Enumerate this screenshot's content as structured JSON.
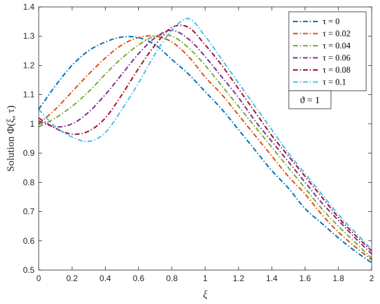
{
  "chart_data": {
    "type": "line",
    "title": "",
    "xlabel": "ξ",
    "ylabel": "Solution Φ(ξ, τ)",
    "xlim": [
      0,
      2
    ],
    "ylim": [
      0.5,
      1.4
    ],
    "xticks": [
      0,
      0.2,
      0.4,
      0.6,
      0.8,
      1,
      1.2,
      1.4,
      1.6,
      1.8,
      2
    ],
    "xtick_labels": [
      "0",
      "0.2",
      "0.4",
      "0.6",
      "0.8",
      "1",
      "1.2",
      "1.4",
      "1.6",
      "1.8",
      "2"
    ],
    "yticks": [
      0.5,
      0.6,
      0.7,
      0.8,
      0.9,
      1,
      1.1,
      1.2,
      1.3,
      1.4
    ],
    "ytick_labels": [
      "0.5",
      "0.6",
      "0.7",
      "0.8",
      "0.9",
      "1",
      "1.1",
      "1.2",
      "1.3",
      "1.4"
    ],
    "grid": false,
    "line_style": "dash-dot",
    "legend_position": "top-right",
    "annotation": "ϑ = 1",
    "x": [
      0,
      0.1,
      0.2,
      0.3,
      0.4,
      0.5,
      0.6,
      0.7,
      0.8,
      0.9,
      1.0,
      1.1,
      1.2,
      1.3,
      1.4,
      1.5,
      1.6,
      1.7,
      1.8,
      1.9,
      2.0
    ],
    "series": [
      {
        "name": "τ = 0",
        "color": "#0072BD",
        "values": [
          1.05,
          1.13,
          1.2,
          1.25,
          1.28,
          1.297,
          1.295,
          1.27,
          1.22,
          1.17,
          1.11,
          1.05,
          0.98,
          0.91,
          0.84,
          0.78,
          0.71,
          0.66,
          0.61,
          0.565,
          0.525
        ]
      },
      {
        "name": "τ = 0.02",
        "color": "#D95319",
        "values": [
          1.0,
          1.05,
          1.11,
          1.17,
          1.225,
          1.27,
          1.295,
          1.3,
          1.28,
          1.23,
          1.16,
          1.1,
          1.03,
          0.96,
          0.89,
          0.82,
          0.76,
          0.69,
          0.63,
          0.58,
          0.535
        ]
      },
      {
        "name": "τ = 0.04",
        "color": "#77AC30",
        "values": [
          0.99,
          1.02,
          1.06,
          1.11,
          1.17,
          1.225,
          1.27,
          1.3,
          1.3,
          1.26,
          1.2,
          1.13,
          1.06,
          0.99,
          0.92,
          0.85,
          0.78,
          0.71,
          0.65,
          0.595,
          0.54
        ]
      },
      {
        "name": "τ = 0.06",
        "color": "#7E2F8E",
        "values": [
          1.01,
          0.99,
          1.0,
          1.04,
          1.1,
          1.17,
          1.24,
          1.295,
          1.32,
          1.29,
          1.23,
          1.16,
          1.09,
          1.01,
          0.94,
          0.87,
          0.8,
          0.73,
          0.67,
          0.61,
          0.555
        ]
      },
      {
        "name": "τ = 0.08",
        "color": "#A2142F",
        "values": [
          1.02,
          0.985,
          0.965,
          0.975,
          1.02,
          1.1,
          1.19,
          1.27,
          1.33,
          1.33,
          1.27,
          1.2,
          1.12,
          1.04,
          0.96,
          0.89,
          0.82,
          0.75,
          0.68,
          0.62,
          0.565
        ]
      },
      {
        "name": "τ = 0.1",
        "color": "#4DBEEE",
        "values": [
          1.05,
          0.99,
          0.955,
          0.94,
          0.97,
          1.05,
          1.14,
          1.24,
          1.32,
          1.36,
          1.3,
          1.22,
          1.14,
          1.06,
          0.98,
          0.9,
          0.83,
          0.76,
          0.69,
          0.63,
          0.57
        ]
      }
    ]
  }
}
